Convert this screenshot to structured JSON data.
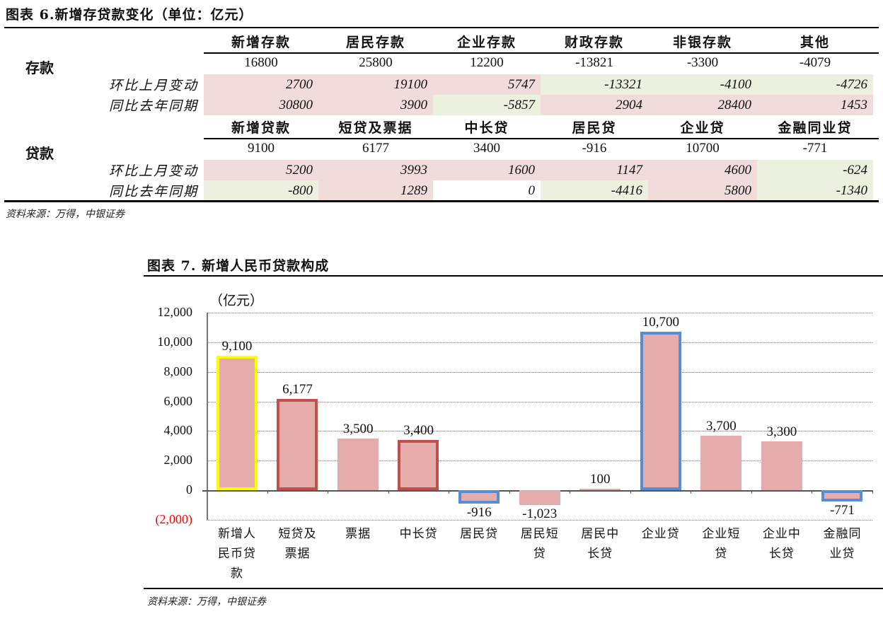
{
  "figure6": {
    "title": "图表 6.新增存贷款变化（单位：亿元）",
    "deposits": {
      "section_label": "存款",
      "headers": [
        "新增存款",
        "居民存款",
        "企业存款",
        "财政存款",
        "非银存款",
        "其他"
      ],
      "values": [
        "16800",
        "25800",
        "12200",
        "-13821",
        "-3300",
        "-4079"
      ],
      "mom_label": "环比上月变动",
      "mom": [
        "2700",
        "19100",
        "5747",
        "-13321",
        "-4100",
        "-4726"
      ],
      "mom_colors": [
        "pink",
        "pink",
        "pink",
        "green",
        "green",
        "green"
      ],
      "yoy_label": "同比去年同期",
      "yoy": [
        "30800",
        "3900",
        "-5857",
        "2904",
        "28400",
        "1453"
      ],
      "yoy_colors": [
        "pink",
        "pink",
        "green",
        "pink",
        "pink",
        "pink"
      ]
    },
    "loans": {
      "section_label": "贷款",
      "headers": [
        "新增贷款",
        "短贷及票据",
        "中长贷",
        "居民贷",
        "企业贷",
        "金融同业贷"
      ],
      "values": [
        "9100",
        "6177",
        "3400",
        "-916",
        "10700",
        "-771"
      ],
      "mom_label": "环比上月变动",
      "mom": [
        "5200",
        "3993",
        "1600",
        "1147",
        "4600",
        "-624"
      ],
      "mom_colors": [
        "pink",
        "pink",
        "pink",
        "pink",
        "pink",
        "green"
      ],
      "yoy_label": "同比去年同期",
      "yoy": [
        "-800",
        "1289",
        "0",
        "-4416",
        "5800",
        "-1340"
      ],
      "yoy_colors": [
        "green",
        "pink",
        "white",
        "green",
        "pink",
        "green"
      ]
    },
    "source": "资料来源：万得，中银证券"
  },
  "figure7": {
    "title": "图表 7. 新增人民币贷款构成",
    "unit": "（亿元）",
    "source": "资料来源：万得，中银证券"
  },
  "colors": {
    "pink_cell": "#f2dbdb",
    "green_cell": "#ebf1de",
    "bar_fill": "#e6acac",
    "yellow_outline": "#ffff00",
    "red_outline": "#c0504d",
    "blue_outline": "#558ed5",
    "negative_tick": "#ff0000"
  },
  "chart_data": {
    "type": "bar",
    "title": "图表 7. 新增人民币贷款构成",
    "ylabel": "（亿元）",
    "xlabel": "",
    "ylim": [
      -2000,
      12000
    ],
    "yticks": [
      "(2,000)",
      "0",
      "2,000",
      "4,000",
      "6,000",
      "8,000",
      "10,000",
      "12,000"
    ],
    "grid": true,
    "categories": [
      "新增人民币贷款",
      "短贷及票据",
      "票据",
      "中长贷",
      "居民贷",
      "居民短贷",
      "居民中长贷",
      "企业贷",
      "企业短贷",
      "企业中长贷",
      "金融同业贷"
    ],
    "category_lines": [
      [
        "新增人",
        "民币贷",
        "款"
      ],
      [
        "短贷及",
        "票据"
      ],
      [
        "票据"
      ],
      [
        "中长贷"
      ],
      [
        "居民贷"
      ],
      [
        "居民短",
        "贷"
      ],
      [
        "居民中",
        "长贷"
      ],
      [
        "企业贷"
      ],
      [
        "企业短",
        "贷"
      ],
      [
        "企业中",
        "长贷"
      ],
      [
        "金融同",
        "业贷"
      ]
    ],
    "values": [
      9100,
      6177,
      3500,
      3400,
      -916,
      -1023,
      100,
      10700,
      3700,
      3300,
      -771
    ],
    "value_labels": [
      "9,100",
      "6,177",
      "3,500",
      "3,400",
      "-916",
      "-1,023",
      "100",
      "10,700",
      "3,700",
      "3,300",
      "-771"
    ],
    "outlines": [
      "yellow",
      "red",
      "none",
      "red",
      "blue",
      "none",
      "none",
      "blue",
      "none",
      "none",
      "blue"
    ]
  }
}
